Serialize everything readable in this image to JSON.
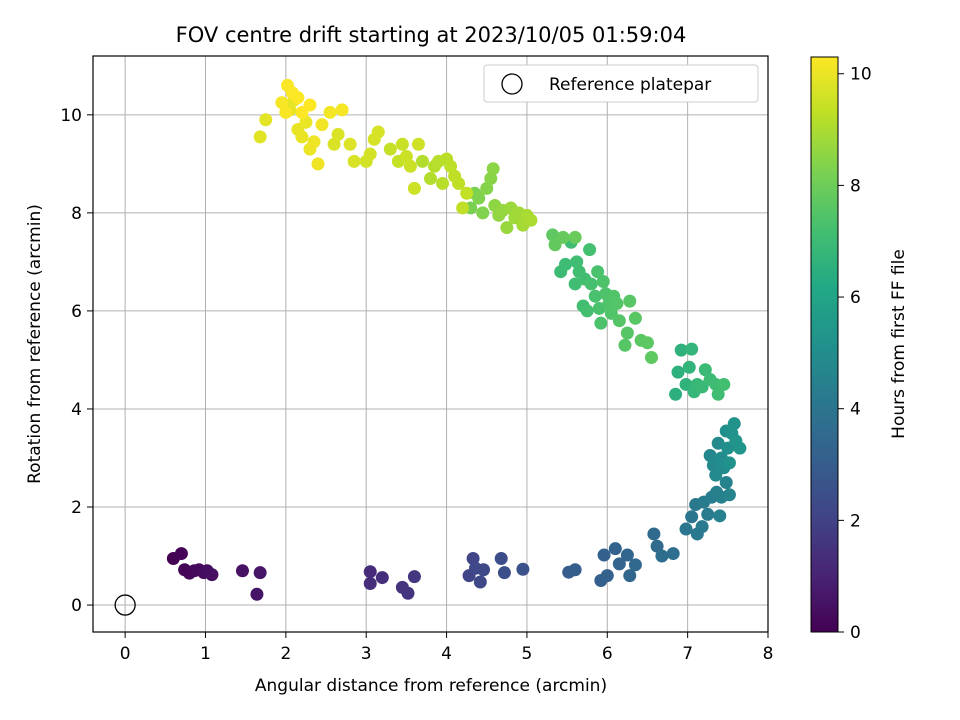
{
  "chart_data": {
    "type": "scatter",
    "title": "FOV centre drift starting at 2023/10/05 01:59:04",
    "xlabel": "Angular distance from reference (arcmin)",
    "ylabel": "Rotation from reference (arcmin)",
    "xlim": [
      -0.4,
      8.0
    ],
    "ylim": [
      -0.55,
      11.2
    ],
    "xticks": [
      0,
      1,
      2,
      3,
      4,
      5,
      6,
      7,
      8
    ],
    "yticks": [
      0,
      2,
      4,
      6,
      8,
      10
    ],
    "grid": true,
    "legend": {
      "position": "top-right",
      "entries": [
        "Reference platepar"
      ]
    },
    "reference_point": {
      "x": 0,
      "y": 0
    },
    "colorbar": {
      "label": "Hours from first FF file",
      "colormap": "viridis",
      "range": [
        0,
        10.3
      ],
      "ticks": [
        0,
        2,
        4,
        6,
        8,
        10
      ]
    },
    "series": [
      {
        "color_variable": "hours",
        "points": [
          [
            0.6,
            0.95,
            0.0
          ],
          [
            0.7,
            1.05,
            0.05
          ],
          [
            0.74,
            0.72,
            0.1
          ],
          [
            0.8,
            0.65,
            0.15
          ],
          [
            0.86,
            0.7,
            0.2
          ],
          [
            0.92,
            0.72,
            0.25
          ],
          [
            0.98,
            0.66,
            0.3
          ],
          [
            1.02,
            0.7,
            0.35
          ],
          [
            1.08,
            0.62,
            0.4
          ],
          [
            1.46,
            0.7,
            0.5
          ],
          [
            1.64,
            0.22,
            0.55
          ],
          [
            1.68,
            0.66,
            0.6
          ],
          [
            3.05,
            0.68,
            1.3
          ],
          [
            3.05,
            0.44,
            1.35
          ],
          [
            3.2,
            0.56,
            1.4
          ],
          [
            3.45,
            0.36,
            1.5
          ],
          [
            3.52,
            0.24,
            1.55
          ],
          [
            3.6,
            0.58,
            1.6
          ],
          [
            4.28,
            0.6,
            2.1
          ],
          [
            4.33,
            0.95,
            2.15
          ],
          [
            4.36,
            0.75,
            2.2
          ],
          [
            4.42,
            0.47,
            2.25
          ],
          [
            4.46,
            0.72,
            2.3
          ],
          [
            4.68,
            0.95,
            2.4
          ],
          [
            4.72,
            0.66,
            2.45
          ],
          [
            4.95,
            0.73,
            2.55
          ],
          [
            5.52,
            0.67,
            3.0
          ],
          [
            5.6,
            0.72,
            3.05
          ],
          [
            5.92,
            0.5,
            3.1
          ],
          [
            5.96,
            1.02,
            3.15
          ],
          [
            6.0,
            0.6,
            3.2
          ],
          [
            6.1,
            1.15,
            3.25
          ],
          [
            6.15,
            0.84,
            3.3
          ],
          [
            6.25,
            1.02,
            3.35
          ],
          [
            6.28,
            0.6,
            3.4
          ],
          [
            6.35,
            0.82,
            3.45
          ],
          [
            6.58,
            1.45,
            3.55
          ],
          [
            6.62,
            1.2,
            3.6
          ],
          [
            6.68,
            1.0,
            3.65
          ],
          [
            6.82,
            1.05,
            3.7
          ],
          [
            6.98,
            1.55,
            4.0
          ],
          [
            7.05,
            1.8,
            4.05
          ],
          [
            7.1,
            2.05,
            4.1
          ],
          [
            7.12,
            1.45,
            4.15
          ],
          [
            7.18,
            1.6,
            4.2
          ],
          [
            7.2,
            2.1,
            4.25
          ],
          [
            7.25,
            1.85,
            4.3
          ],
          [
            7.3,
            2.2,
            4.35
          ],
          [
            7.36,
            2.3,
            4.4
          ],
          [
            7.4,
            1.82,
            4.45
          ],
          [
            7.42,
            2.2,
            4.5
          ],
          [
            7.48,
            2.5,
            4.55
          ],
          [
            7.52,
            2.25,
            4.6
          ],
          [
            7.28,
            3.05,
            4.75
          ],
          [
            7.32,
            2.85,
            4.8
          ],
          [
            7.35,
            2.65,
            4.85
          ],
          [
            7.38,
            3.3,
            4.9
          ],
          [
            7.42,
            3.0,
            4.95
          ],
          [
            7.45,
            2.8,
            5.0
          ],
          [
            7.48,
            3.55,
            5.05
          ],
          [
            7.5,
            3.2,
            5.1
          ],
          [
            7.52,
            2.9,
            5.15
          ],
          [
            7.55,
            3.5,
            5.2
          ],
          [
            7.58,
            3.7,
            5.25
          ],
          [
            7.6,
            3.35,
            5.3
          ],
          [
            7.65,
            3.2,
            5.35
          ],
          [
            6.85,
            4.3,
            6.5
          ],
          [
            6.88,
            4.75,
            6.55
          ],
          [
            6.92,
            5.2,
            6.6
          ],
          [
            6.98,
            4.5,
            6.65
          ],
          [
            7.02,
            4.85,
            6.7
          ],
          [
            7.05,
            5.22,
            6.75
          ],
          [
            7.08,
            4.35,
            6.8
          ],
          [
            7.12,
            4.5,
            6.85
          ],
          [
            7.18,
            4.45,
            6.9
          ],
          [
            7.22,
            4.8,
            6.95
          ],
          [
            7.28,
            4.6,
            7.0
          ],
          [
            7.35,
            4.5,
            7.05
          ],
          [
            7.38,
            4.3,
            7.1
          ],
          [
            7.45,
            4.5,
            7.15
          ],
          [
            5.42,
            6.8,
            7.0
          ],
          [
            5.48,
            6.95,
            7.02
          ],
          [
            5.55,
            7.4,
            7.05
          ],
          [
            5.6,
            6.55,
            7.08
          ],
          [
            5.62,
            7.0,
            7.1
          ],
          [
            5.65,
            6.8,
            7.12
          ],
          [
            5.7,
            6.1,
            7.15
          ],
          [
            5.72,
            6.65,
            7.18
          ],
          [
            5.75,
            6.0,
            7.2
          ],
          [
            5.78,
            7.25,
            7.22
          ],
          [
            5.8,
            6.55,
            7.25
          ],
          [
            5.85,
            6.3,
            7.28
          ],
          [
            5.88,
            6.8,
            7.3
          ],
          [
            5.9,
            6.05,
            7.32
          ],
          [
            5.92,
            5.75,
            7.35
          ],
          [
            5.95,
            6.6,
            7.38
          ],
          [
            5.98,
            6.35,
            7.4
          ],
          [
            6.02,
            6.15,
            7.42
          ],
          [
            6.05,
            5.95,
            7.45
          ],
          [
            6.08,
            6.3,
            7.48
          ],
          [
            6.12,
            6.15,
            7.5
          ],
          [
            6.15,
            5.8,
            7.52
          ],
          [
            6.22,
            5.3,
            7.55
          ],
          [
            6.25,
            5.55,
            7.58
          ],
          [
            6.28,
            6.2,
            7.6
          ],
          [
            6.35,
            5.85,
            7.62
          ],
          [
            6.42,
            5.4,
            7.65
          ],
          [
            6.5,
            5.35,
            7.68
          ],
          [
            6.55,
            5.05,
            7.7
          ],
          [
            5.32,
            7.55,
            7.75
          ],
          [
            5.35,
            7.35,
            7.8
          ],
          [
            5.45,
            7.5,
            7.85
          ],
          [
            5.6,
            7.5,
            7.9
          ],
          [
            4.3,
            8.1,
            8.2
          ],
          [
            4.35,
            8.4,
            8.25
          ],
          [
            4.4,
            8.3,
            8.3
          ],
          [
            4.45,
            8.0,
            8.35
          ],
          [
            4.5,
            8.5,
            8.4
          ],
          [
            4.55,
            8.7,
            8.45
          ],
          [
            4.58,
            8.9,
            8.5
          ],
          [
            4.6,
            8.15,
            8.55
          ],
          [
            4.65,
            7.95,
            8.6
          ],
          [
            4.7,
            8.05,
            8.65
          ],
          [
            4.75,
            7.7,
            8.7
          ],
          [
            4.8,
            8.1,
            8.75
          ],
          [
            4.85,
            7.9,
            8.8
          ],
          [
            4.9,
            8.0,
            8.85
          ],
          [
            4.95,
            7.75,
            8.9
          ],
          [
            5.0,
            7.95,
            8.95
          ],
          [
            5.05,
            7.85,
            9.0
          ],
          [
            3.7,
            9.05,
            9.1
          ],
          [
            3.8,
            8.7,
            9.12
          ],
          [
            3.85,
            8.95,
            9.15
          ],
          [
            3.9,
            9.05,
            9.18
          ],
          [
            3.95,
            8.6,
            9.2
          ],
          [
            4.0,
            9.1,
            9.22
          ],
          [
            4.05,
            8.95,
            9.25
          ],
          [
            4.1,
            8.75,
            9.28
          ],
          [
            4.15,
            8.6,
            9.3
          ],
          [
            4.2,
            8.1,
            9.32
          ],
          [
            4.25,
            8.4,
            9.35
          ],
          [
            3.3,
            9.3,
            9.4
          ],
          [
            3.4,
            9.05,
            9.42
          ],
          [
            3.45,
            9.4,
            9.45
          ],
          [
            3.5,
            9.15,
            9.48
          ],
          [
            3.55,
            8.95,
            9.5
          ],
          [
            3.6,
            8.5,
            9.52
          ],
          [
            3.65,
            9.4,
            9.55
          ],
          [
            3.0,
            9.05,
            9.6
          ],
          [
            3.05,
            9.2,
            9.62
          ],
          [
            3.1,
            9.5,
            9.65
          ],
          [
            3.15,
            9.65,
            9.68
          ],
          [
            2.85,
            9.05,
            9.7
          ],
          [
            2.6,
            9.4,
            9.72
          ],
          [
            2.65,
            9.6,
            9.75
          ],
          [
            2.8,
            9.4,
            9.78
          ],
          [
            1.68,
            9.55,
            9.85
          ],
          [
            1.75,
            9.9,
            9.88
          ],
          [
            2.05,
            10.1,
            9.9
          ],
          [
            2.1,
            10.3,
            9.92
          ],
          [
            2.15,
            9.7,
            9.95
          ],
          [
            2.2,
            9.55,
            9.98
          ],
          [
            2.25,
            9.85,
            10.0
          ],
          [
            2.3,
            9.3,
            10.02
          ],
          [
            2.35,
            9.45,
            10.05
          ],
          [
            2.4,
            9.0,
            10.08
          ],
          [
            2.45,
            9.8,
            10.1
          ],
          [
            2.55,
            10.05,
            10.12
          ],
          [
            2.7,
            10.1,
            10.15
          ],
          [
            1.95,
            10.25,
            10.2
          ],
          [
            2.0,
            10.05,
            10.22
          ],
          [
            2.02,
            10.6,
            10.25
          ],
          [
            2.08,
            10.45,
            10.27
          ],
          [
            2.15,
            10.35,
            10.28
          ],
          [
            2.2,
            10.05,
            10.3
          ],
          [
            2.3,
            10.2,
            10.3
          ]
        ]
      }
    ]
  }
}
